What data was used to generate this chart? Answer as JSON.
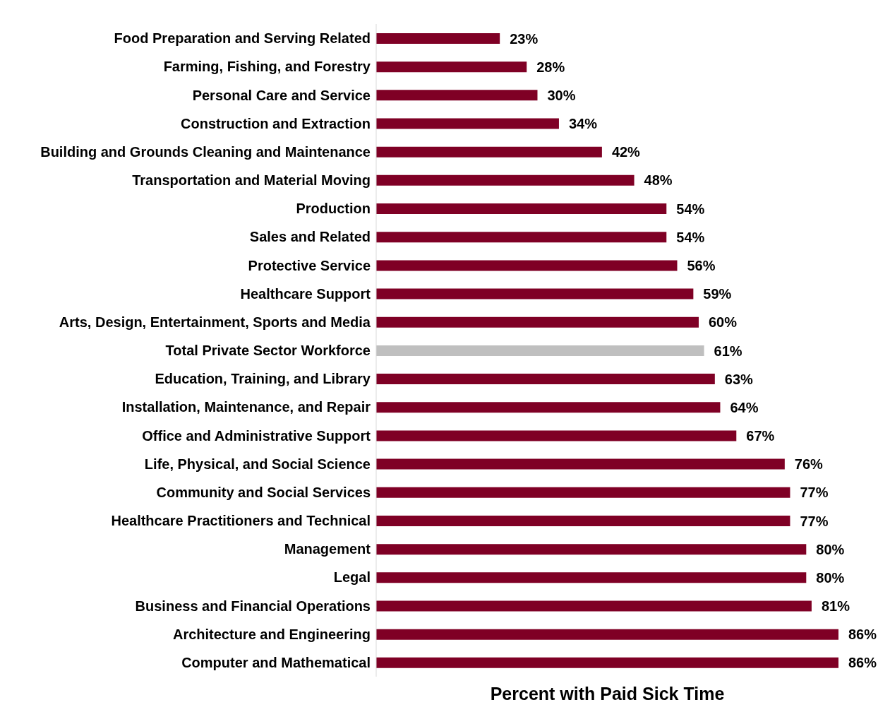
{
  "chart_data": {
    "type": "bar",
    "orientation": "horizontal",
    "xlabel": "Percent with Paid Sick Time",
    "categories": [
      "Food Preparation and Serving Related",
      "Farming, Fishing, and Forestry",
      "Personal Care and Service",
      "Construction and Extraction",
      "Building and Grounds Cleaning and Maintenance",
      "Transportation and Material Moving",
      "Production",
      "Sales and Related",
      "Protective Service",
      "Healthcare Support",
      "Arts, Design, Entertainment, Sports and Media",
      "Total Private Sector Workforce",
      "Education, Training, and Library",
      "Installation, Maintenance, and Repair",
      "Office and Administrative Support",
      "Life, Physical, and Social Science",
      "Community and Social Services",
      "Healthcare Practitioners and Technical",
      "Management",
      "Legal",
      "Business and Financial Operations",
      "Architecture and Engineering",
      "Computer and Mathematical"
    ],
    "values": [
      23,
      28,
      30,
      34,
      42,
      48,
      54,
      54,
      56,
      59,
      60,
      61,
      63,
      64,
      67,
      76,
      77,
      77,
      80,
      80,
      81,
      86,
      86
    ],
    "value_labels": [
      "23%",
      "28%",
      "30%",
      "34%",
      "42%",
      "48%",
      "54%",
      "54%",
      "56%",
      "59%",
      "60%",
      "61%",
      "63%",
      "64%",
      "67%",
      "76%",
      "77%",
      "77%",
      "80%",
      "80%",
      "81%",
      "86%",
      "86%"
    ],
    "colors": [
      "#7f0025",
      "#7f0025",
      "#7f0025",
      "#7f0025",
      "#7f0025",
      "#7f0025",
      "#7f0025",
      "#7f0025",
      "#7f0025",
      "#7f0025",
      "#7f0025",
      "#bfbfbf",
      "#7f0025",
      "#7f0025",
      "#7f0025",
      "#7f0025",
      "#7f0025",
      "#7f0025",
      "#7f0025",
      "#7f0025",
      "#7f0025",
      "#7f0025",
      "#7f0025"
    ],
    "grid": false,
    "legend": false
  }
}
